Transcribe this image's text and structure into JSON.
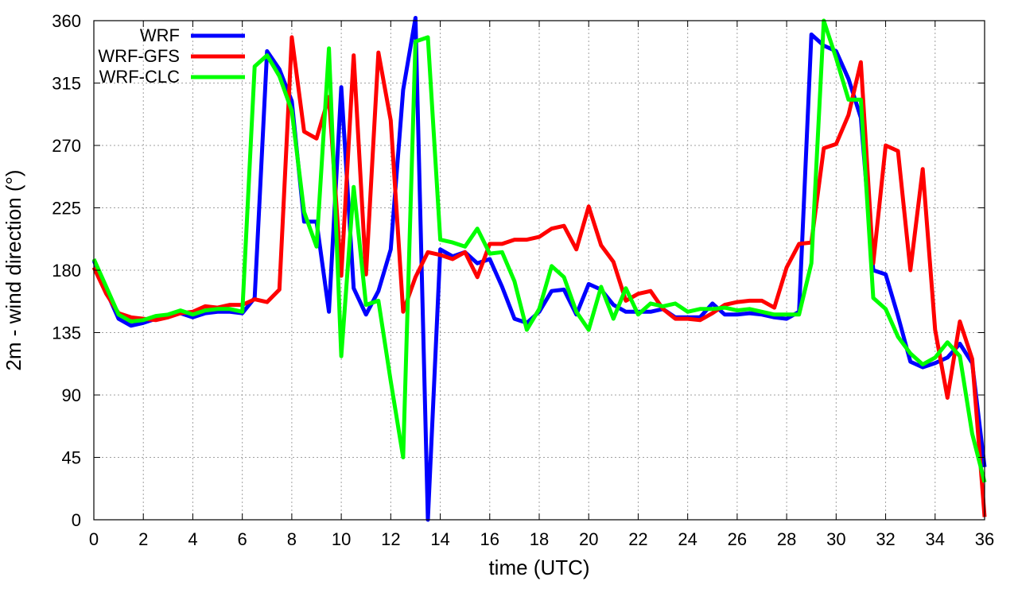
{
  "chart_data": {
    "type": "line",
    "title": "",
    "xlabel": "time (UTC)",
    "ylabel": "2m - wind direction (°)",
    "xlim": [
      0,
      36
    ],
    "ylim": [
      0,
      360
    ],
    "xticks": [
      0,
      2,
      4,
      6,
      8,
      10,
      12,
      14,
      16,
      18,
      20,
      22,
      24,
      26,
      28,
      30,
      32,
      34,
      36
    ],
    "yticks": [
      0,
      45,
      90,
      135,
      180,
      225,
      270,
      315,
      360
    ],
    "grid": true,
    "legend_position": "top-left",
    "series": [
      {
        "name": "WRF",
        "color": "#0000ff",
        "points": [
          [
            0,
            187
          ],
          [
            0.5,
            165
          ],
          [
            1,
            145
          ],
          [
            1.5,
            140
          ],
          [
            2,
            142
          ],
          [
            2.5,
            145
          ],
          [
            3,
            147
          ],
          [
            3.5,
            149
          ],
          [
            4,
            146
          ],
          [
            4.5,
            149
          ],
          [
            5,
            150
          ],
          [
            5.5,
            150
          ],
          [
            6,
            149
          ],
          [
            6.5,
            160
          ],
          [
            7,
            338
          ],
          [
            7.5,
            325
          ],
          [
            8,
            302
          ],
          [
            8.5,
            215
          ],
          [
            9,
            215
          ],
          [
            9.5,
            150
          ],
          [
            10,
            312
          ],
          [
            10.5,
            167
          ],
          [
            11,
            148
          ],
          [
            11.5,
            165
          ],
          [
            12,
            195
          ],
          [
            12.5,
            310
          ],
          [
            13,
            362
          ],
          [
            13.5,
            0
          ],
          [
            14,
            195
          ],
          [
            14.5,
            190
          ],
          [
            15,
            193
          ],
          [
            15.5,
            185
          ],
          [
            16,
            188
          ],
          [
            16.5,
            168
          ],
          [
            17,
            145
          ],
          [
            17.5,
            142
          ],
          [
            18,
            150
          ],
          [
            18.5,
            165
          ],
          [
            19,
            166
          ],
          [
            19.5,
            148
          ],
          [
            20,
            170
          ],
          [
            20.5,
            166
          ],
          [
            21,
            155
          ],
          [
            21.5,
            150
          ],
          [
            22,
            150
          ],
          [
            22.5,
            150
          ],
          [
            23,
            152
          ],
          [
            23.5,
            146
          ],
          [
            24,
            146
          ],
          [
            24.5,
            146
          ],
          [
            25,
            156
          ],
          [
            25.5,
            148
          ],
          [
            26,
            148
          ],
          [
            26.5,
            149
          ],
          [
            27,
            148
          ],
          [
            27.5,
            146
          ],
          [
            28,
            145
          ],
          [
            28.5,
            150
          ],
          [
            29,
            350
          ],
          [
            29.5,
            342
          ],
          [
            30,
            338
          ],
          [
            30.5,
            318
          ],
          [
            31,
            290
          ],
          [
            31.5,
            180
          ],
          [
            32,
            177
          ],
          [
            32.5,
            147
          ],
          [
            33,
            114
          ],
          [
            33.5,
            110
          ],
          [
            34,
            113
          ],
          [
            34.5,
            117
          ],
          [
            35,
            127
          ],
          [
            35.5,
            113
          ],
          [
            36,
            38
          ]
        ]
      },
      {
        "name": "WRF-GFS",
        "color": "#ff0000",
        "points": [
          [
            0,
            182
          ],
          [
            0.5,
            163
          ],
          [
            1,
            149
          ],
          [
            1.5,
            146
          ],
          [
            2,
            145
          ],
          [
            2.5,
            144
          ],
          [
            3,
            146
          ],
          [
            3.5,
            149
          ],
          [
            4,
            150
          ],
          [
            4.5,
            154
          ],
          [
            5,
            153
          ],
          [
            5.5,
            155
          ],
          [
            6,
            155
          ],
          [
            6.5,
            159
          ],
          [
            7,
            157
          ],
          [
            7.5,
            166
          ],
          [
            8,
            348
          ],
          [
            8.5,
            280
          ],
          [
            9,
            275
          ],
          [
            9.5,
            305
          ],
          [
            10,
            176
          ],
          [
            10.5,
            335
          ],
          [
            11,
            177
          ],
          [
            11.5,
            337
          ],
          [
            12,
            288
          ],
          [
            12.5,
            150
          ],
          [
            13,
            175
          ],
          [
            13.5,
            193
          ],
          [
            14,
            191
          ],
          [
            14.5,
            188
          ],
          [
            15,
            193
          ],
          [
            15.5,
            175
          ],
          [
            16,
            199
          ],
          [
            16.5,
            199
          ],
          [
            17,
            202
          ],
          [
            17.5,
            202
          ],
          [
            18,
            204
          ],
          [
            18.5,
            210
          ],
          [
            19,
            212
          ],
          [
            19.5,
            195
          ],
          [
            20,
            226
          ],
          [
            20.5,
            198
          ],
          [
            21,
            186
          ],
          [
            21.5,
            158
          ],
          [
            22,
            163
          ],
          [
            22.5,
            165
          ],
          [
            23,
            152
          ],
          [
            23.5,
            145
          ],
          [
            24,
            145
          ],
          [
            24.5,
            144
          ],
          [
            25,
            149
          ],
          [
            25.5,
            155
          ],
          [
            26,
            157
          ],
          [
            26.5,
            158
          ],
          [
            27,
            158
          ],
          [
            27.5,
            153
          ],
          [
            28,
            182
          ],
          [
            28.5,
            199
          ],
          [
            29,
            200
          ],
          [
            29.5,
            268
          ],
          [
            30,
            271
          ],
          [
            30.5,
            292
          ],
          [
            31,
            330
          ],
          [
            31.5,
            185
          ],
          [
            32,
            270
          ],
          [
            32.5,
            266
          ],
          [
            33,
            180
          ],
          [
            33.5,
            253
          ],
          [
            34,
            137
          ],
          [
            34.5,
            88
          ],
          [
            35,
            143
          ],
          [
            35.5,
            116
          ],
          [
            36,
            2
          ]
        ]
      },
      {
        "name": "WRF-CLC",
        "color": "#00ff00",
        "points": [
          [
            0,
            188
          ],
          [
            0.5,
            168
          ],
          [
            1,
            148
          ],
          [
            1.5,
            143
          ],
          [
            2,
            144
          ],
          [
            2.5,
            147
          ],
          [
            3,
            148
          ],
          [
            3.5,
            151
          ],
          [
            4,
            148
          ],
          [
            4.5,
            151
          ],
          [
            5,
            152
          ],
          [
            5.5,
            152
          ],
          [
            6,
            150
          ],
          [
            6.5,
            327
          ],
          [
            7,
            335
          ],
          [
            7.5,
            320
          ],
          [
            8,
            295
          ],
          [
            8.5,
            222
          ],
          [
            9,
            197
          ],
          [
            9.5,
            340
          ],
          [
            10,
            118
          ],
          [
            10.5,
            240
          ],
          [
            11,
            155
          ],
          [
            11.5,
            158
          ],
          [
            12,
            100
          ],
          [
            12.5,
            45
          ],
          [
            13,
            345
          ],
          [
            13.5,
            348
          ],
          [
            14,
            202
          ],
          [
            14.5,
            200
          ],
          [
            15,
            197
          ],
          [
            15.5,
            210
          ],
          [
            16,
            192
          ],
          [
            16.5,
            193
          ],
          [
            17,
            172
          ],
          [
            17.5,
            137
          ],
          [
            18,
            152
          ],
          [
            18.5,
            183
          ],
          [
            19,
            175
          ],
          [
            19.5,
            150
          ],
          [
            20,
            137
          ],
          [
            20.5,
            168
          ],
          [
            21,
            145
          ],
          [
            21.5,
            167
          ],
          [
            22,
            148
          ],
          [
            22.5,
            156
          ],
          [
            23,
            154
          ],
          [
            23.5,
            156
          ],
          [
            24,
            150
          ],
          [
            24.5,
            152
          ],
          [
            25,
            152
          ],
          [
            25.5,
            153
          ],
          [
            26,
            151
          ],
          [
            26.5,
            152
          ],
          [
            27,
            150
          ],
          [
            27.5,
            148
          ],
          [
            28,
            148
          ],
          [
            28.5,
            148
          ],
          [
            29,
            185
          ],
          [
            29.5,
            360
          ],
          [
            30,
            333
          ],
          [
            30.5,
            303
          ],
          [
            31,
            303
          ],
          [
            31.5,
            160
          ],
          [
            32,
            152
          ],
          [
            32.5,
            132
          ],
          [
            33,
            120
          ],
          [
            33.5,
            112
          ],
          [
            34,
            117
          ],
          [
            34.5,
            128
          ],
          [
            35,
            118
          ],
          [
            35.5,
            62
          ],
          [
            36,
            27
          ]
        ]
      }
    ]
  }
}
